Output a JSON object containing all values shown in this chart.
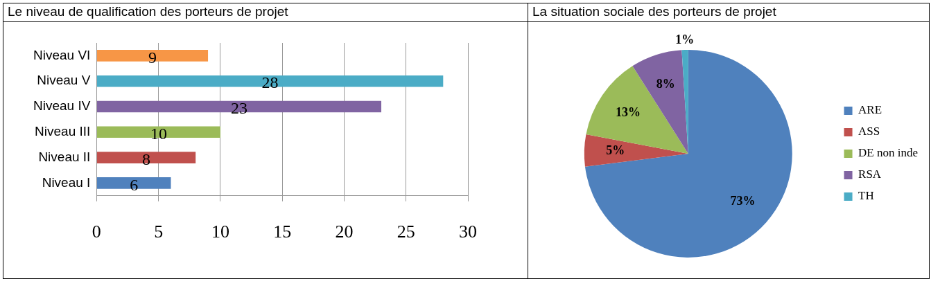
{
  "chart_data": [
    {
      "type": "bar",
      "title": "Le niveau de qualification des porteurs de projet",
      "orientation": "horizontal",
      "categories": [
        "Niveau VI",
        "Niveau V",
        "Niveau IV",
        "Niveau III",
        "Niveau II",
        "Niveau I"
      ],
      "values": [
        9,
        28,
        23,
        10,
        8,
        6
      ],
      "colors": [
        "#f79646",
        "#4bacc6",
        "#8064a2",
        "#9bbb59",
        "#c0504d",
        "#4f81bd"
      ],
      "xlim": [
        0,
        30
      ],
      "xticks": [
        0,
        5,
        10,
        15,
        20,
        25,
        30
      ],
      "grid": "x",
      "data_labels": true,
      "legend": false
    },
    {
      "type": "pie",
      "title": "La situation sociale des porteurs de projet",
      "categories": [
        "ARE",
        "ASS",
        "DE non inde",
        "RSA",
        "TH"
      ],
      "values": [
        73,
        5,
        13,
        8,
        1
      ],
      "colors": [
        "#4f81bd",
        "#c0504d",
        "#9bbb59",
        "#8064a2",
        "#4bacc6"
      ],
      "value_labels": [
        "73%",
        "5%",
        "13%",
        "8%",
        "1%"
      ],
      "legend": "right"
    }
  ]
}
